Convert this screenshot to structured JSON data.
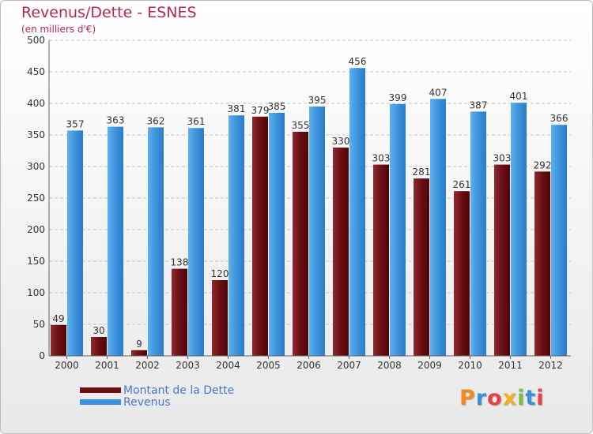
{
  "title": "Revenus/Dette - ESNES",
  "subtitle": "(en milliers d'€)",
  "logo": "Proxiti",
  "colors": {
    "debt": "#7b1a1f",
    "revenue": "#3d93dc",
    "title": "#b5245f",
    "legend_text": "#4a78c8"
  },
  "chart_data": {
    "type": "bar",
    "title": "Revenus/Dette - ESNES",
    "subtitle": "(en milliers d'€)",
    "xlabel": "",
    "ylabel": "",
    "ylim": [
      0,
      500
    ],
    "yticks": [
      0,
      50,
      100,
      150,
      200,
      250,
      300,
      350,
      400,
      450,
      500
    ],
    "grid": true,
    "legend_position": "bottom-left",
    "categories": [
      "2000",
      "2001",
      "2002",
      "2003",
      "2004",
      "2005",
      "2006",
      "2007",
      "2008",
      "2009",
      "2010",
      "2011",
      "2012"
    ],
    "series": [
      {
        "name": "Montant de la Dette",
        "values": [
          49,
          30,
          9,
          138,
          120,
          379,
          355,
          330,
          303,
          281,
          261,
          303,
          292
        ]
      },
      {
        "name": "Revenus",
        "values": [
          357,
          363,
          362,
          361,
          381,
          385,
          395,
          456,
          399,
          407,
          387,
          401,
          366
        ]
      }
    ]
  }
}
